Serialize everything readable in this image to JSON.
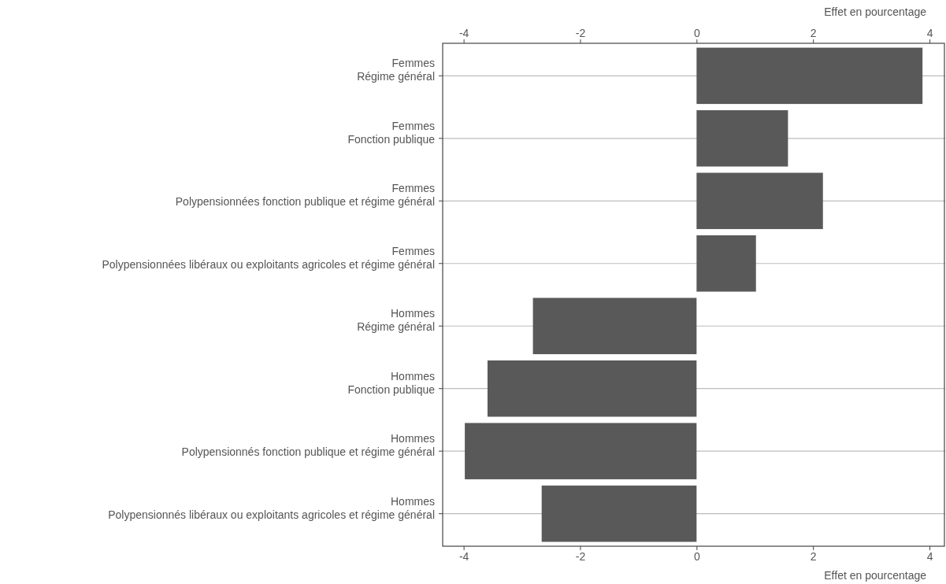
{
  "chart_data": {
    "type": "bar",
    "orientation": "horizontal",
    "categories": [
      "Femmes\nRégime général",
      "Femmes\nFonction publique",
      "Femmes\nPolypensionnées fonction publique et régime général",
      "Femmes\nPolypensionnées libéraux ou exploitants agricoles et régime général",
      "Hommes\nRégime général",
      "Hommes\nFonction publique",
      "Hommes\nPolypensionnés fonction publique et régime général",
      "Hommes\nPolypensionnés libéraux ou exploitants agricoles et régime général"
    ],
    "values": [
      3.88,
      1.57,
      2.17,
      1.02,
      -2.81,
      -3.59,
      -3.98,
      -2.66
    ],
    "color": "#595959",
    "xlim": [
      -4.36,
      4.27
    ],
    "xticks": [
      -4,
      -2,
      0,
      2,
      4
    ],
    "xlabel": "Effet en pourcentage",
    "x2lim": [
      -4.36,
      4.27
    ],
    "x2ticks": [
      -4,
      -2,
      0,
      2,
      4
    ],
    "x2label": "Effet en pourcentage",
    "grid": "y"
  }
}
